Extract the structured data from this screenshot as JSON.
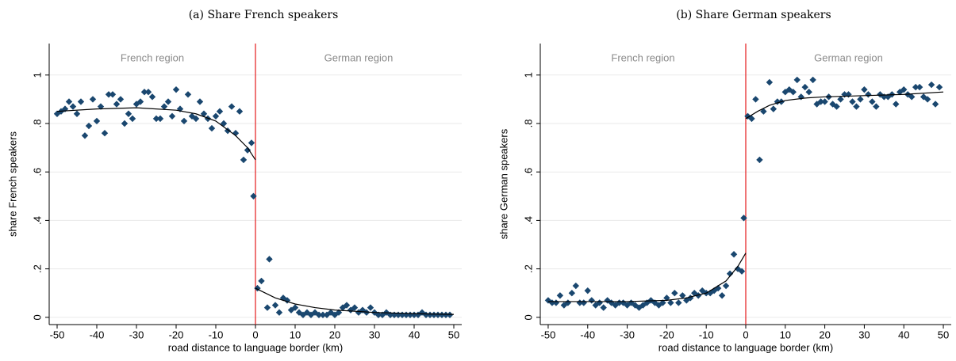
{
  "chart_data": [
    {
      "type": "scatter",
      "title": "(a) Share French speakers",
      "xlabel": "road distance to language border (km)",
      "ylabel": "share French speakers",
      "region_labels": [
        "French region",
        "German region"
      ],
      "cutoff": 0,
      "cutoff_color": "#e41a1c",
      "grid": true,
      "xlim": [
        -52,
        52
      ],
      "ylim": [
        -0.03,
        1.13
      ],
      "xticks": [
        -50,
        -40,
        -30,
        -20,
        -10,
        0,
        10,
        20,
        30,
        40,
        50
      ],
      "yticks": [
        0,
        {
          "value": 0.2,
          "label": ".2"
        },
        {
          "value": 0.4,
          "label": ".4"
        },
        {
          "value": 0.6,
          "label": ".6"
        },
        {
          "value": 0.8,
          "label": ".8"
        },
        1
      ],
      "points": {
        "color": "#1a476f",
        "x": [
          -50,
          -49,
          -48,
          -47,
          -46,
          -45,
          -44,
          -43,
          -42,
          -41,
          -40,
          -39,
          -38,
          -37,
          -36,
          -35,
          -34,
          -33,
          -32,
          -31,
          -30,
          -29,
          -28,
          -27,
          -26,
          -25,
          -24,
          -23,
          -22,
          -21,
          -20,
          -19,
          -18,
          -17,
          -16,
          -15,
          -14,
          -13,
          -12,
          -11,
          -10,
          -9,
          -8,
          -7,
          -6,
          -5,
          -4,
          -3,
          -2,
          -1,
          -0.5,
          0.5,
          1.5,
          3,
          3.5,
          5,
          6,
          7,
          8,
          9,
          10,
          11,
          12,
          13,
          14,
          15,
          16,
          17,
          18,
          19,
          20,
          21,
          22,
          23,
          24,
          25,
          26,
          27,
          28,
          29,
          30,
          31,
          32,
          33,
          34,
          35,
          36,
          37,
          38,
          39,
          40,
          41,
          42,
          43,
          44,
          45,
          46,
          47,
          48,
          49
        ],
        "values": [
          0.84,
          0.85,
          0.86,
          0.89,
          0.87,
          0.84,
          0.89,
          0.75,
          0.79,
          0.9,
          0.81,
          0.87,
          0.76,
          0.92,
          0.92,
          0.88,
          0.9,
          0.8,
          0.84,
          0.82,
          0.88,
          0.89,
          0.93,
          0.93,
          0.91,
          0.82,
          0.82,
          0.87,
          0.89,
          0.83,
          0.94,
          0.86,
          0.81,
          0.92,
          0.83,
          0.82,
          0.89,
          0.84,
          0.82,
          0.78,
          0.83,
          0.85,
          0.8,
          0.77,
          0.87,
          0.76,
          0.85,
          0.65,
          0.69,
          0.72,
          0.5,
          0.12,
          0.15,
          0.04,
          0.24,
          0.05,
          0.02,
          0.08,
          0.07,
          0.03,
          0.04,
          0.02,
          0.01,
          0.02,
          0.01,
          0.02,
          0.01,
          0.01,
          0.01,
          0.02,
          0.01,
          0.02,
          0.04,
          0.05,
          0.03,
          0.04,
          0.02,
          0.03,
          0.02,
          0.04,
          0.02,
          0.01,
          0.01,
          0.02,
          0.01,
          0.01,
          0.01,
          0.01,
          0.01,
          0.01,
          0.01,
          0.01,
          0.02,
          0.01,
          0.01,
          0.01,
          0.01,
          0.01,
          0.01,
          0.01
        ]
      },
      "fit": [
        {
          "x": [
            -50,
            -40,
            -30,
            -20,
            -15,
            -10,
            -5,
            -2,
            0
          ],
          "values": [
            0.85,
            0.86,
            0.865,
            0.855,
            0.84,
            0.81,
            0.75,
            0.7,
            0.65
          ]
        },
        {
          "x": [
            0,
            5,
            10,
            15,
            20,
            30,
            40,
            50
          ],
          "values": [
            0.12,
            0.08,
            0.055,
            0.04,
            0.03,
            0.02,
            0.015,
            0.012
          ]
        }
      ]
    },
    {
      "type": "scatter",
      "title": "(b) Share German speakers",
      "xlabel": "road distance to language border (km)",
      "ylabel": "share German speakers",
      "region_labels": [
        "French region",
        "German region"
      ],
      "cutoff": 0,
      "cutoff_color": "#e41a1c",
      "grid": true,
      "xlim": [
        -52,
        52
      ],
      "ylim": [
        -0.03,
        1.13
      ],
      "xticks": [
        -50,
        -40,
        -30,
        -20,
        -10,
        0,
        10,
        20,
        30,
        40,
        50
      ],
      "yticks": [
        0,
        {
          "value": 0.2,
          "label": ".2"
        },
        {
          "value": 0.4,
          "label": ".4"
        },
        {
          "value": 0.6,
          "label": ".6"
        },
        {
          "value": 0.8,
          "label": ".8"
        },
        1
      ],
      "points": {
        "color": "#1a476f",
        "x": [
          -50,
          -49,
          -48,
          -47,
          -46,
          -45,
          -44,
          -43,
          -42,
          -41,
          -40,
          -39,
          -38,
          -37,
          -36,
          -35,
          -34,
          -33,
          -32,
          -31,
          -30,
          -29,
          -28,
          -27,
          -26,
          -25,
          -24,
          -23,
          -22,
          -21,
          -20,
          -19,
          -18,
          -17,
          -16,
          -15,
          -14,
          -13,
          -12,
          -11,
          -10,
          -9,
          -8,
          -7,
          -6,
          -5,
          -4,
          -3,
          -2,
          -1,
          -0.5,
          0.5,
          1.5,
          2.5,
          3.5,
          4.5,
          6,
          7,
          8,
          9,
          10,
          11,
          12,
          13,
          14,
          15,
          16,
          17,
          18,
          19,
          20,
          21,
          22,
          23,
          24,
          25,
          26,
          27,
          28,
          29,
          30,
          31,
          32,
          33,
          34,
          35,
          36,
          37,
          38,
          39,
          40,
          41,
          42,
          43,
          44,
          45,
          46,
          47,
          48,
          49
        ],
        "values": [
          0.07,
          0.06,
          0.06,
          0.09,
          0.05,
          0.06,
          0.1,
          0.13,
          0.06,
          0.06,
          0.11,
          0.07,
          0.05,
          0.06,
          0.04,
          0.07,
          0.06,
          0.05,
          0.06,
          0.06,
          0.05,
          0.06,
          0.05,
          0.04,
          0.05,
          0.06,
          0.07,
          0.06,
          0.05,
          0.06,
          0.08,
          0.06,
          0.1,
          0.06,
          0.09,
          0.07,
          0.08,
          0.1,
          0.09,
          0.11,
          0.1,
          0.1,
          0.11,
          0.12,
          0.09,
          0.13,
          0.18,
          0.26,
          0.2,
          0.19,
          0.41,
          0.83,
          0.82,
          0.9,
          0.65,
          0.85,
          0.97,
          0.86,
          0.89,
          0.89,
          0.93,
          0.94,
          0.93,
          0.98,
          0.91,
          0.95,
          0.93,
          0.98,
          0.88,
          0.89,
          0.89,
          0.91,
          0.88,
          0.87,
          0.9,
          0.92,
          0.92,
          0.89,
          0.87,
          0.9,
          0.94,
          0.92,
          0.89,
          0.87,
          0.92,
          0.91,
          0.91,
          0.92,
          0.88,
          0.93,
          0.94,
          0.92,
          0.91,
          0.95,
          0.95,
          0.91,
          0.9,
          0.96,
          0.88,
          0.95
        ]
      },
      "fit": [
        {
          "x": [
            -50,
            -30,
            -20,
            -15,
            -10,
            -5,
            -2,
            0
          ],
          "values": [
            0.065,
            0.065,
            0.07,
            0.08,
            0.1,
            0.15,
            0.21,
            0.265
          ]
        },
        {
          "x": [
            0,
            3,
            6,
            10,
            15,
            20,
            30,
            40,
            50
          ],
          "values": [
            0.82,
            0.85,
            0.875,
            0.895,
            0.905,
            0.91,
            0.915,
            0.92,
            0.93
          ]
        }
      ]
    }
  ]
}
